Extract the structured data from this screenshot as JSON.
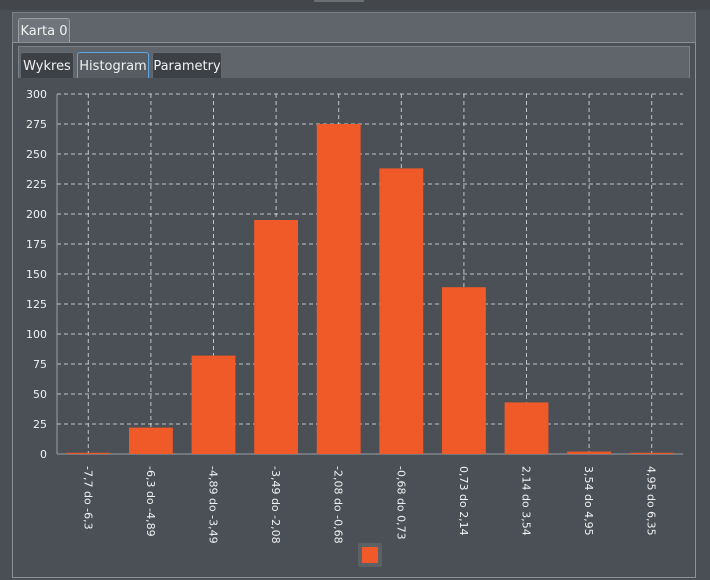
{
  "outer_tabs": [
    {
      "label": "Karta 0"
    }
  ],
  "inner_tabs": [
    {
      "label": "Wykres"
    },
    {
      "label": "Histogram"
    },
    {
      "label": "Parametry"
    }
  ],
  "colors": {
    "bar": "#f05a28",
    "grid": "#d8d8d8",
    "axis_text": "#f0f0f0",
    "active_tab_border": "#5ba7e6"
  },
  "chart_data": {
    "type": "bar",
    "categories": [
      "-7,7 do -6,3",
      "-6,3 do -4,89",
      "-4,89 do -3,49",
      "-3,49 do -2,08",
      "-2,08 do -0,68",
      "-0,68 do 0,73",
      "0,73 do 2,14",
      "2,14 do 3,54",
      "3,54 do 4,95",
      "4,95 do 6,35"
    ],
    "values": [
      1,
      22,
      82,
      195,
      275,
      238,
      139,
      43,
      2,
      1
    ],
    "yticks": [
      0,
      25,
      50,
      75,
      100,
      125,
      150,
      175,
      200,
      225,
      250,
      275,
      300
    ],
    "ylim": [
      0,
      300
    ],
    "grid": true,
    "legend": {
      "position": "bottom-center"
    }
  }
}
